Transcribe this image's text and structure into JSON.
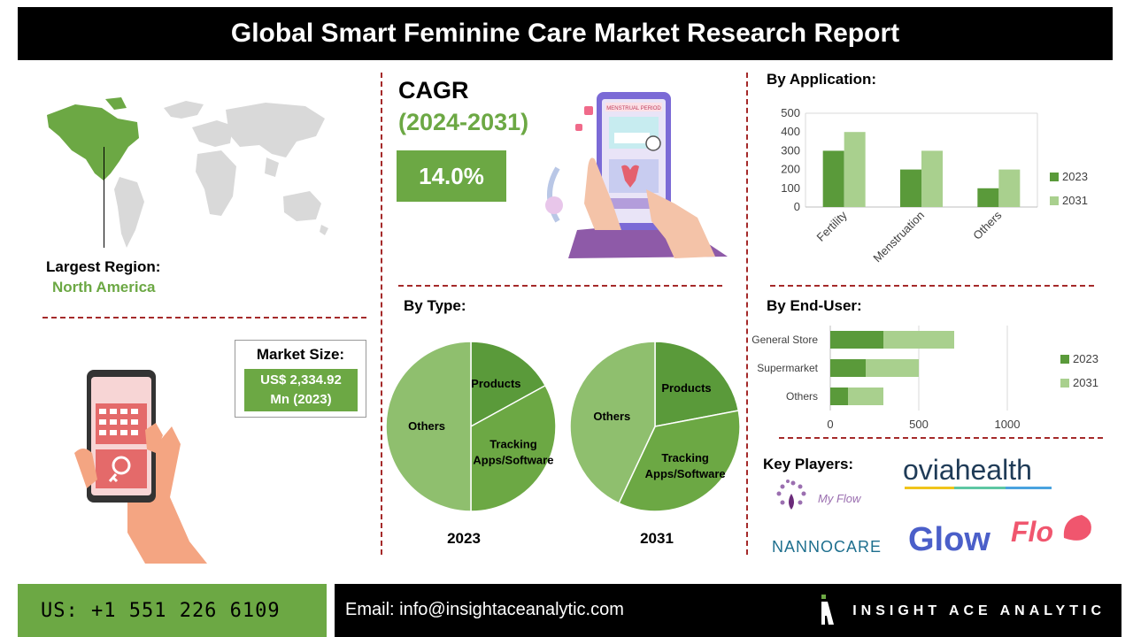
{
  "title": "Global Smart Feminine Care Market Research Report",
  "region": {
    "label": "Largest Region:",
    "value": "North America"
  },
  "market_size": {
    "label": "Market Size:",
    "value_line1": "US$ 2,334.92",
    "value_line2": "Mn (2023)"
  },
  "cagr": {
    "label": "CAGR",
    "years": "(2024-2031)",
    "value": "14.0%"
  },
  "phone_text": "MENSTRUAL PERIOD",
  "sections": {
    "application": "By Application:",
    "type": "By Type:",
    "end_user": "By End-User:",
    "key_players": "Key Players:"
  },
  "key_players": [
    "My Flow",
    "oviahealth",
    "NANNOCARE",
    "Glow",
    "Flo"
  ],
  "footer": {
    "phone": "US: +1 551 226 6109",
    "email": "Email: info@insightaceanalytic.com",
    "brand": "INSIGHT ACE ANALYTIC"
  },
  "colors": {
    "dark_green": "#5a9a3a",
    "light_green": "#a9d08e",
    "pie_light": "#8fbf6e",
    "accent": "#6ca844",
    "divider": "#a52a2a"
  },
  "chart_data": [
    {
      "id": "by_application",
      "type": "bar",
      "categories": [
        "Fertility",
        "Menstruation",
        "Others"
      ],
      "series": [
        {
          "name": "2023",
          "values": [
            300,
            200,
            100
          ]
        },
        {
          "name": "2031",
          "values": [
            400,
            300,
            200
          ]
        }
      ],
      "ylim": [
        0,
        500
      ],
      "yticks": [
        0,
        100,
        200,
        300,
        400,
        500
      ],
      "legend": "right"
    },
    {
      "id": "by_end_user",
      "type": "bar",
      "orientation": "horizontal",
      "stacked": true,
      "categories": [
        "General Store",
        "Supermarket",
        "Others"
      ],
      "series": [
        {
          "name": "2023",
          "values": [
            300,
            200,
            100
          ]
        },
        {
          "name": "2031",
          "values": [
            400,
            300,
            200
          ]
        }
      ],
      "xlim": [
        0,
        1200
      ],
      "xticks": [
        0,
        500,
        1000
      ],
      "legend": "right"
    },
    {
      "id": "by_type_2023",
      "type": "pie",
      "title": "2023",
      "labels": [
        "Products",
        "Tracking Apps/Software",
        "Others"
      ],
      "values": [
        17,
        33,
        50
      ]
    },
    {
      "id": "by_type_2031",
      "type": "pie",
      "title": "2031",
      "labels": [
        "Products",
        "Tracking Apps/Software",
        "Others"
      ],
      "values": [
        22,
        35,
        43
      ]
    }
  ]
}
